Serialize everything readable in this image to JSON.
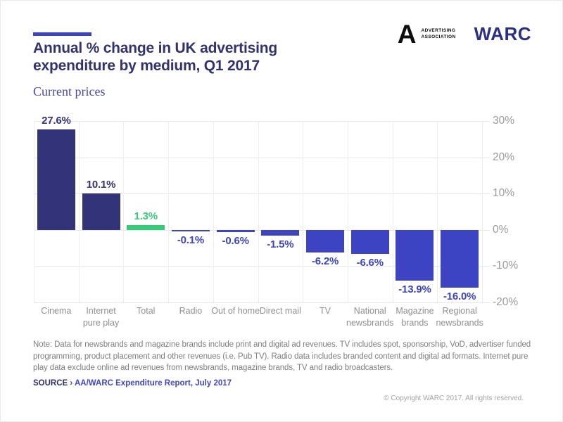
{
  "header": {
    "title_line1": "Annual % change in UK advertising",
    "title_line2": "expenditure by medium, Q1 2017",
    "subtitle": "Current prices"
  },
  "logos": {
    "aa_letter": "A",
    "aa_line1": "ADVERTISING",
    "aa_line2": "ASSOCIATION",
    "warc": "WARC"
  },
  "chart_data": {
    "type": "bar",
    "title": "Annual % change in UK advertising expenditure by medium, Q1 2017",
    "subtitle": "Current prices",
    "categories": [
      "Cinema",
      "Internet pure play",
      "Total",
      "Radio",
      "Out of home",
      "Direct mail",
      "TV",
      "National newsbrands",
      "Magazine brands",
      "Regional newsbrands"
    ],
    "category_lines": [
      [
        "Cinema"
      ],
      [
        "Internet",
        "pure play"
      ],
      [
        "Total"
      ],
      [
        "Radio"
      ],
      [
        "Out of home"
      ],
      [
        "Direct mail"
      ],
      [
        "TV"
      ],
      [
        "National",
        "newsbrands"
      ],
      [
        "Magazine",
        "brands"
      ],
      [
        "Regional",
        "newsbrands"
      ]
    ],
    "values": [
      27.6,
      10.1,
      1.3,
      -0.1,
      -0.6,
      -1.5,
      -6.2,
      -6.6,
      -13.9,
      -16.0
    ],
    "value_labels": [
      "27.6%",
      "10.1%",
      "1.3%",
      "-0.1%",
      "-0.6%",
      "-1.5%",
      "-6.2%",
      "-6.6%",
      "-13.9%",
      "-16.0%"
    ],
    "bar_colors": [
      "#333379",
      "#333379",
      "#33cb78",
      "#3d44c4",
      "#3d44c4",
      "#3d44c4",
      "#3d44c4",
      "#3d44c4",
      "#3d44c4",
      "#3d44c4"
    ],
    "ylim": [
      -20,
      30
    ],
    "yticks": [
      30,
      20,
      10,
      0,
      -10,
      -20
    ],
    "ytick_labels": [
      "30%",
      "20%",
      "10%",
      "0%",
      "-10%",
      "-20%"
    ],
    "grid": true,
    "legend": false,
    "colors": {
      "positive_bar": "#333379",
      "negative_bar": "#3d44c4",
      "total_bar": "#33cb78",
      "gridline": "#e6e6f2",
      "axis_text": "#9b9b9b"
    }
  },
  "note": "Note: Data for newsbrands and magazine brands include print and digital ad revenues. TV includes spot, sponsorship, VoD, advertiser funded programming, product placement and other revenues (i.e. Pub TV). Radio data includes branded content and digital ad formats. Internet pure play data exclude online ad revenues from newsbrands, magazine brands, TV and radio broadcasters.",
  "source": {
    "label": "SOURCE",
    "rest": "› AA/WARC Expenditure Report, July 2017"
  },
  "footer": {
    "copyright": "© Copyright  WARC  2017.  All rights reserved."
  }
}
